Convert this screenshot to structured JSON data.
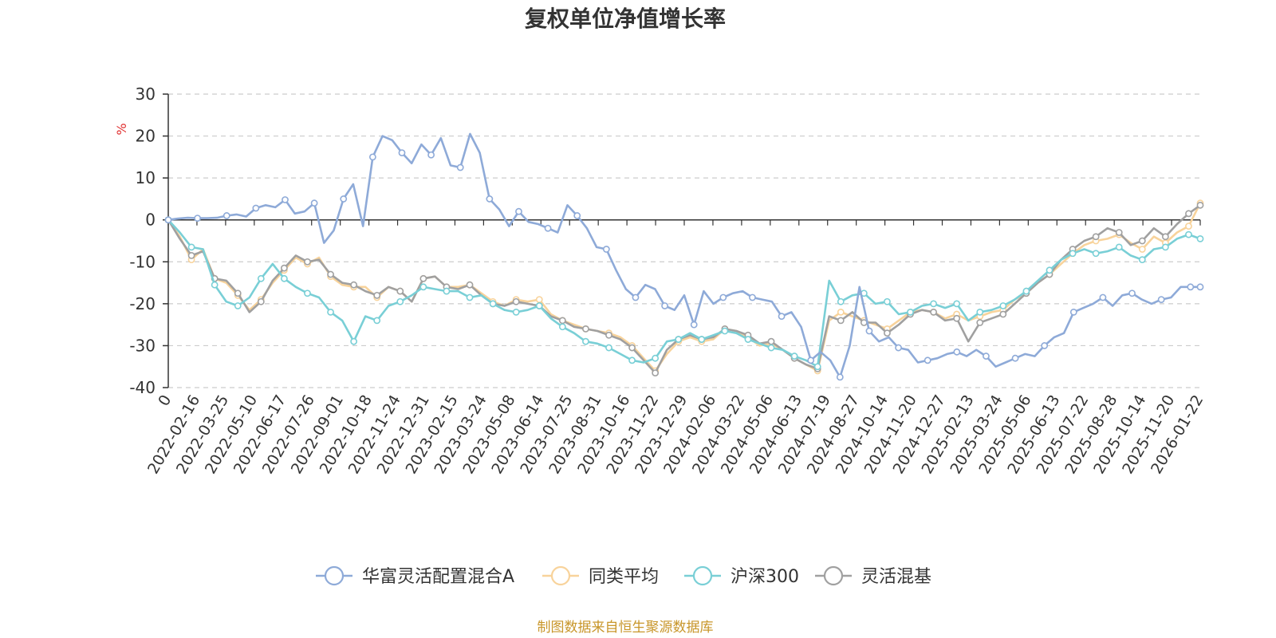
{
  "footer_text": "制图数据来自恒生聚源数据库",
  "chart_data": {
    "type": "line",
    "title": "复权单位净值增长率",
    "ylabel": "%",
    "ylim": [
      -40,
      30
    ],
    "yticks": [
      30,
      20,
      10,
      0,
      -10,
      -20,
      -30,
      -40
    ],
    "grid": true,
    "legend_position": "bottom",
    "x_tick_labels": [
      "0",
      "2022-02-16",
      "2022-03-25",
      "2022-05-10",
      "2022-06-17",
      "2022-07-26",
      "2022-09-01",
      "2022-10-18",
      "2022-11-24",
      "2022-12-31",
      "2023-02-15",
      "2023-03-24",
      "2023-05-08",
      "2023-06-14",
      "2023-07-25",
      "2023-08-31",
      "2023-10-16",
      "2023-11-22",
      "2023-12-29",
      "2024-02-06",
      "2024-03-22",
      "2024-05-06",
      "2024-06-13",
      "2024-07-19",
      "2024-08-27",
      "2024-10-14",
      "2024-11-20",
      "2024-12-27",
      "2025-02-13",
      "2025-03-24",
      "2025-05-06",
      "2025-06-13",
      "2025-07-22",
      "2025-08-28",
      "2025-10-14",
      "2025-11-20",
      "2026-01-22"
    ],
    "series": [
      {
        "name": "华富灵活配置混合A",
        "color": "#8eaad8",
        "values": [
          0,
          0.3,
          0.5,
          0.4,
          0.4,
          0.5,
          1.0,
          1.3,
          0.8,
          2.8,
          3.5,
          3.0,
          4.8,
          1.5,
          2.0,
          4.0,
          -5.5,
          -2.5,
          5.0,
          8.5,
          -1.5,
          15.0,
          20.0,
          19.0,
          16.0,
          13.5,
          18.0,
          15.5,
          19.5,
          13.0,
          12.5,
          20.5,
          16.0,
          5.0,
          2.5,
          -1.5,
          2.0,
          -0.5,
          -1.0,
          -2.0,
          -3.0,
          3.5,
          1.0,
          -2.0,
          -6.5,
          -7.0,
          -12.0,
          -16.5,
          -18.5,
          -15.5,
          -16.5,
          -20.5,
          -21.5,
          -18.0,
          -25.0,
          -17.0,
          -20.0,
          -18.5,
          -17.5,
          -17.0,
          -18.5,
          -19.0,
          -19.5,
          -23.0,
          -22.0,
          -25.5,
          -33.5,
          -31.5,
          -33.5,
          -37.5,
          -30.0,
          -16.0,
          -26.5,
          -29.0,
          -28.0,
          -30.5,
          -31.0,
          -34.0,
          -33.5,
          -33.0,
          -32.0,
          -31.5,
          -32.5,
          -31.0,
          -32.5,
          -35.0,
          -34.0,
          -33.0,
          -32.0,
          -32.5,
          -30.0,
          -28.0,
          -27.0,
          -22.0,
          -21.0,
          -20.0,
          -18.5,
          -20.5,
          -18.0,
          -17.5,
          -19.0,
          -20.0,
          -19.0,
          -18.5,
          -16.0,
          -16.0,
          -16.0
        ]
      },
      {
        "name": "同类平均",
        "color": "#f8d39b",
        "values": [
          0,
          -4.0,
          -9.5,
          -7.0,
          -14.0,
          -15.0,
          -18.0,
          -21.5,
          -19.0,
          -15.0,
          -12.0,
          -9.0,
          -10.5,
          -9.0,
          -13.5,
          -15.5,
          -16.0,
          -16.0,
          -18.5,
          -16.0,
          -17.0,
          -19.5,
          -14.0,
          -13.5,
          -16.0,
          -16.0,
          -15.5,
          -17.5,
          -19.5,
          -20.5,
          -19.0,
          -19.5,
          -19.0,
          -22.5,
          -24.0,
          -25.0,
          -26.0,
          -26.5,
          -27.0,
          -28.0,
          -30.0,
          -33.0,
          -36.0,
          -32.0,
          -29.0,
          -28.0,
          -29.0,
          -28.5,
          -26.0,
          -26.5,
          -28.0,
          -30.0,
          -29.5,
          -31.0,
          -33.0,
          -34.5,
          -36.0,
          -24.0,
          -22.0,
          -23.0,
          -24.0,
          -25.0,
          -26.0,
          -24.0,
          -22.0,
          -21.5,
          -22.0,
          -23.5,
          -22.5,
          -24.0,
          -23.0,
          -22.0,
          -21.5,
          -19.0,
          -17.5,
          -15.0,
          -13.0,
          -10.5,
          -8.0,
          -6.0,
          -5.0,
          -4.5,
          -3.5,
          -5.5,
          -7.0,
          -4.0,
          -5.5,
          -3.0,
          -1.5,
          4.0
        ]
      },
      {
        "name": "沪深300",
        "color": "#79cfd6",
        "values": [
          0,
          -3.0,
          -6.5,
          -7.0,
          -15.5,
          -19.5,
          -20.5,
          -18.5,
          -14.0,
          -10.5,
          -14.0,
          -16.0,
          -17.5,
          -18.5,
          -22.0,
          -24.0,
          -29.0,
          -23.0,
          -24.0,
          -20.5,
          -19.5,
          -18.0,
          -16.0,
          -16.5,
          -17.0,
          -17.0,
          -18.5,
          -18.0,
          -20.0,
          -21.5,
          -22.0,
          -21.5,
          -20.5,
          -23.5,
          -25.5,
          -27.0,
          -29.0,
          -29.5,
          -30.5,
          -32.0,
          -33.5,
          -34.0,
          -33.0,
          -29.0,
          -28.5,
          -27.0,
          -28.5,
          -27.5,
          -26.5,
          -27.0,
          -28.5,
          -29.5,
          -30.5,
          -31.0,
          -32.5,
          -33.5,
          -35.0,
          -14.5,
          -19.5,
          -18.0,
          -17.5,
          -20.0,
          -19.5,
          -22.5,
          -22.0,
          -20.5,
          -20.0,
          -21.0,
          -20.0,
          -24.0,
          -22.0,
          -21.5,
          -20.5,
          -19.0,
          -17.0,
          -14.5,
          -12.0,
          -9.5,
          -8.0,
          -7.0,
          -8.0,
          -7.5,
          -6.5,
          -8.5,
          -9.5,
          -7.0,
          -6.5,
          -4.5,
          -3.5,
          -4.5
        ]
      },
      {
        "name": "灵活混基",
        "color": "#a0a0a0",
        "values": [
          0,
          -4.5,
          -8.5,
          -7.5,
          -14.0,
          -14.5,
          -17.5,
          -22.0,
          -19.5,
          -14.5,
          -11.5,
          -8.5,
          -10.0,
          -9.5,
          -13.0,
          -15.0,
          -15.5,
          -17.0,
          -18.0,
          -16.0,
          -17.0,
          -19.5,
          -14.0,
          -13.5,
          -16.0,
          -16.5,
          -15.5,
          -18.0,
          -20.0,
          -20.5,
          -19.5,
          -20.0,
          -20.5,
          -23.0,
          -24.0,
          -25.5,
          -26.0,
          -26.5,
          -27.5,
          -28.5,
          -30.5,
          -33.5,
          -36.5,
          -31.0,
          -28.5,
          -27.5,
          -28.5,
          -28.0,
          -26.0,
          -26.5,
          -27.5,
          -29.5,
          -29.0,
          -31.0,
          -33.0,
          -34.5,
          -35.5,
          -23.0,
          -24.0,
          -22.0,
          -24.5,
          -24.5,
          -27.0,
          -25.0,
          -22.5,
          -21.5,
          -22.0,
          -24.0,
          -23.5,
          -29.0,
          -24.5,
          -23.5,
          -22.5,
          -20.0,
          -17.5,
          -15.0,
          -13.0,
          -9.5,
          -7.0,
          -5.0,
          -4.0,
          -2.0,
          -3.0,
          -6.0,
          -5.0,
          -2.0,
          -4.0,
          -1.0,
          1.5,
          3.5
        ]
      }
    ]
  }
}
